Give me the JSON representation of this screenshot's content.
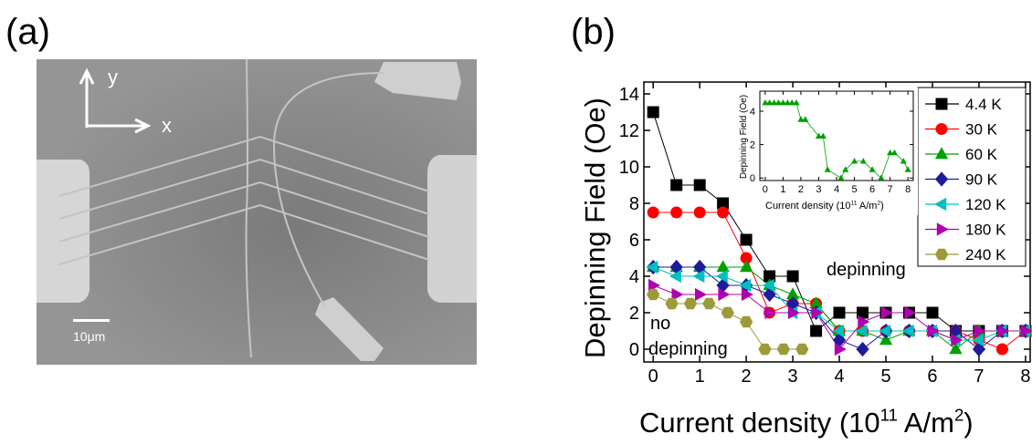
{
  "panel_a": {
    "label": "(a)",
    "axis_y": "y",
    "axis_x": "x",
    "scale_bar": "10μm"
  },
  "chart_data": [
    {
      "type": "line",
      "panel_label": "(b)",
      "y_label": "Depinning Field (Oe)",
      "x_label_parts": [
        "Current density (10",
        "11",
        " A/m",
        "2",
        ")"
      ],
      "annotations": [
        "depinning",
        "no",
        "depinning"
      ],
      "x": [
        0,
        0.5,
        1,
        1.5,
        2,
        2.5,
        3,
        3.5,
        4,
        4.5,
        5,
        5.5,
        6,
        6.5,
        7,
        7.5,
        8
      ],
      "xlim": [
        -0.2,
        8.1
      ],
      "ylim": [
        -0.7,
        14.65
      ],
      "xticks": [
        0,
        1,
        2,
        3,
        4,
        5,
        6,
        7,
        8
      ],
      "yticks": [
        0,
        2,
        4,
        6,
        8,
        10,
        12,
        14
      ],
      "series": [
        {
          "name": "4.4 K",
          "color": "#000000",
          "marker": "square",
          "values": [
            13,
            9,
            9,
            8,
            6,
            4,
            4,
            1,
            2,
            2,
            2,
            2,
            2,
            1,
            1,
            1,
            1
          ]
        },
        {
          "name": "30 K",
          "color": "#ff0000",
          "marker": "circle",
          "values": [
            7.5,
            7.5,
            7.5,
            7.5,
            5,
            2,
            2.5,
            2.5,
            1,
            1,
            1,
            1,
            1,
            1,
            0.5,
            0,
            1
          ]
        },
        {
          "name": "60 K",
          "color": "#00a000",
          "marker": "triangle-up",
          "values": [
            4.5,
            4.5,
            4.5,
            4.5,
            4.5,
            3.5,
            3,
            2.5,
            1,
            1,
            0.5,
            1,
            1,
            0,
            1,
            1,
            1
          ]
        },
        {
          "name": "90 K",
          "color": "#1c1c9c",
          "marker": "diamond",
          "values": [
            4.5,
            4.5,
            4.5,
            3.5,
            3.5,
            3,
            2.5,
            2,
            0.5,
            0,
            1,
            1,
            1,
            1,
            0,
            1,
            1
          ]
        },
        {
          "name": "120 K",
          "color": "#00bfbf",
          "marker": "triangle-left",
          "values": [
            4.5,
            4,
            4,
            4,
            3.5,
            3.5,
            2,
            2,
            1,
            1,
            1,
            1,
            1,
            0.5,
            0.5,
            1,
            1
          ]
        },
        {
          "name": "180 K",
          "color": "#b000b0",
          "marker": "triangle-right",
          "values": [
            3.5,
            3,
            3,
            3,
            3,
            2,
            2,
            2,
            0,
            1.5,
            2,
            2,
            1,
            0.5,
            1,
            1,
            1
          ]
        },
        {
          "name": "240 K",
          "color": "#9c9a3a",
          "marker": "hexagon",
          "x": [
            0,
            0.4,
            0.8,
            1.2,
            1.6,
            2.0,
            2.4,
            2.8,
            3.2
          ],
          "values": [
            3,
            2.5,
            2.5,
            2.5,
            2,
            1.5,
            0,
            0,
            0
          ]
        }
      ]
    },
    {
      "type": "line",
      "y_label": "Depinning Field (Oe)",
      "x_label_parts": [
        "Current density (10",
        "11",
        " A/m",
        "2",
        ")"
      ],
      "x": [
        0,
        0.25,
        0.5,
        0.75,
        1,
        1.25,
        1.5,
        1.75,
        2,
        2.25,
        3,
        3.25,
        3.5,
        4.25,
        4.5,
        5,
        5.5,
        6,
        6.5,
        7,
        7.25,
        7.75,
        8
      ],
      "xlim": [
        -0.3,
        8.3
      ],
      "ylim": [
        -0.15,
        5.2
      ],
      "xticks": [
        0,
        1,
        2,
        3,
        4,
        5,
        6,
        7,
        8
      ],
      "yticks": [
        0,
        2,
        4
      ],
      "series": [
        {
          "color": "#00a000",
          "marker": "triangle-up",
          "values": [
            4.5,
            4.5,
            4.5,
            4.5,
            4.5,
            4.5,
            4.5,
            4.5,
            3.5,
            3.5,
            2.5,
            2.5,
            0.5,
            0,
            0.5,
            1,
            1,
            0.5,
            0,
            1.5,
            1.5,
            1,
            0.5
          ]
        }
      ]
    }
  ]
}
